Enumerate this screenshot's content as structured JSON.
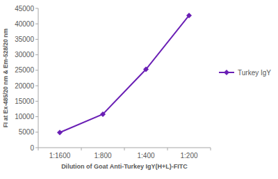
{
  "chart_data": {
    "type": "line",
    "x_label": "Dilution of Goat Anti-Turkey IgY(H+L)-FITC",
    "y_label": "FI at Ex-485/20 nm & Em-528/20 nm",
    "categories": [
      "1:1600",
      "1:800",
      "1:400",
      "1:200"
    ],
    "series": [
      {
        "name": "Turkey IgY",
        "color": "#6a1fb5",
        "marker": "diamond",
        "values": [
          4900,
          10800,
          25300,
          42700
        ]
      }
    ],
    "ylim": [
      0,
      45000
    ],
    "yticks": [
      0,
      5000,
      10000,
      15000,
      20000,
      25000,
      30000,
      35000,
      40000,
      45000
    ],
    "grid": false,
    "legend": "right"
  }
}
